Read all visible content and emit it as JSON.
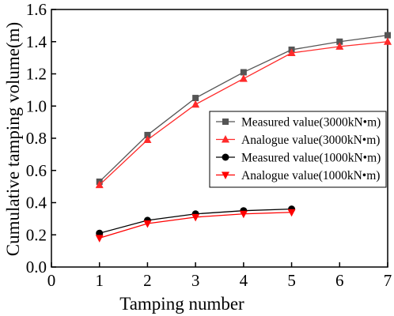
{
  "chart_data": {
    "type": "line",
    "xlabel": "Tamping number",
    "ylabel": "Cumulative tamping volume(m)",
    "xlim": [
      0,
      7
    ],
    "ylim": [
      0.0,
      1.6
    ],
    "x_ticks": [
      0,
      1,
      2,
      3,
      4,
      5,
      6,
      7
    ],
    "y_ticks": [
      "0.0",
      "0.2",
      "0.4",
      "0.6",
      "0.8",
      "1.0",
      "1.2",
      "1.4",
      "1.6"
    ],
    "grid": false,
    "legend_position": "right",
    "series": [
      {
        "name": "Measured value(3000kN•m)",
        "color": "#555555",
        "marker": "square",
        "x": [
          1,
          2,
          3,
          4,
          5,
          6,
          7
        ],
        "y": [
          0.53,
          0.82,
          1.05,
          1.21,
          1.35,
          1.4,
          1.44
        ]
      },
      {
        "name": "Analogue value(3000kN•m)",
        "color": "#ff2a2a",
        "marker": "triangle-up",
        "x": [
          1,
          2,
          3,
          4,
          5,
          6,
          7
        ],
        "y": [
          0.51,
          0.79,
          1.01,
          1.17,
          1.33,
          1.37,
          1.4
        ]
      },
      {
        "name": "Measured value(1000kN•m)",
        "color": "#000000",
        "marker": "circle",
        "x": [
          1,
          2,
          3,
          4,
          5
        ],
        "y": [
          0.21,
          0.29,
          0.33,
          0.35,
          0.36
        ]
      },
      {
        "name": "Analogue value(1000kN•m)",
        "color": "#ff0000",
        "marker": "triangle-down",
        "x": [
          1,
          2,
          3,
          4,
          5
        ],
        "y": [
          0.18,
          0.27,
          0.31,
          0.33,
          0.34
        ]
      }
    ]
  }
}
